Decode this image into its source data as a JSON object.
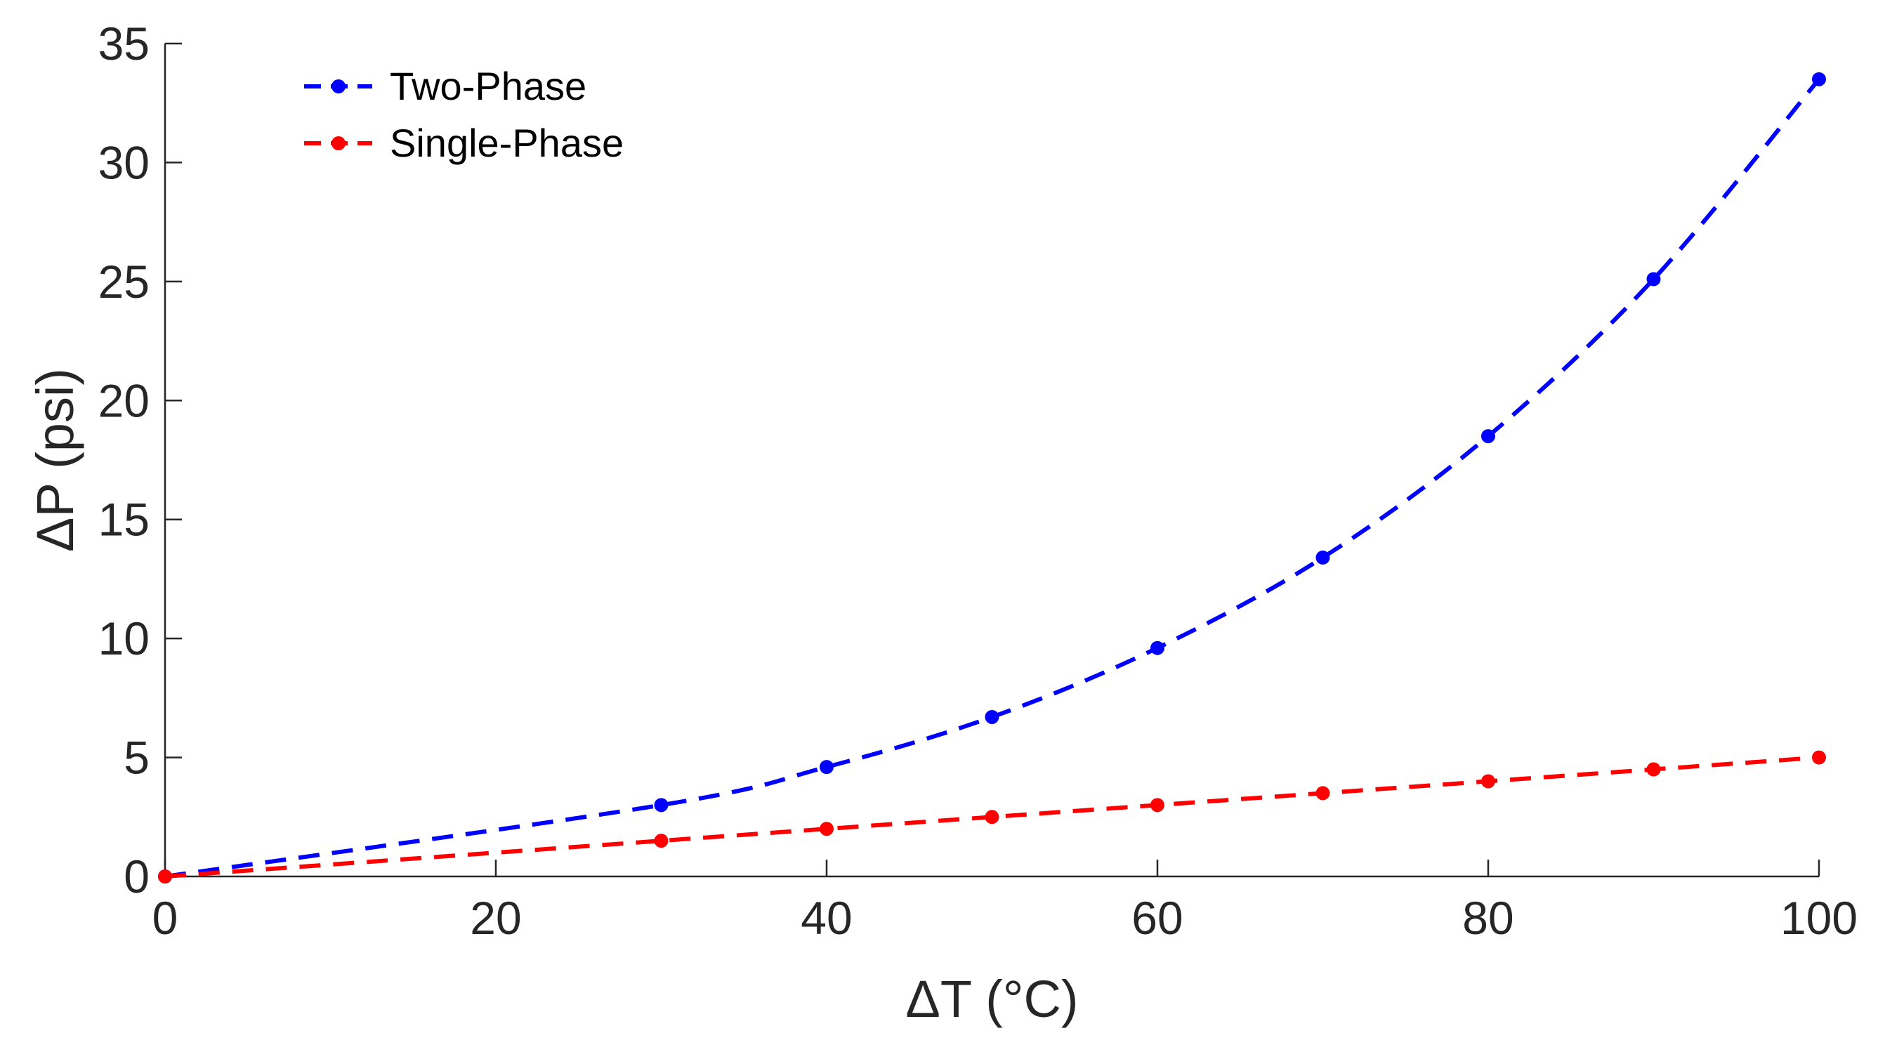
{
  "chart_data": {
    "type": "line",
    "title": "",
    "xlabel": "ΔT (°C)",
    "ylabel": "ΔP (psi)",
    "xlim": [
      0,
      100
    ],
    "ylim": [
      0,
      35
    ],
    "xticks": [
      "0",
      "20",
      "40",
      "60",
      "80",
      "100"
    ],
    "yticks": [
      "0",
      "5",
      "10",
      "15",
      "20",
      "25",
      "30",
      "35"
    ],
    "grid": false,
    "legend_position": "top-left",
    "series": [
      {
        "name": "Two-Phase",
        "color": "#0000ff",
        "line_style": "dashed",
        "marker": "dot",
        "x": [
          0,
          30,
          40,
          50,
          60,
          70,
          80,
          90,
          100
        ],
        "y": [
          0,
          3.0,
          4.6,
          6.7,
          9.6,
          13.4,
          18.5,
          25.1,
          33.5
        ]
      },
      {
        "name": "Single-Phase",
        "color": "#ff0000",
        "line_style": "dashed",
        "marker": "dot",
        "x": [
          0,
          30,
          40,
          50,
          60,
          70,
          80,
          90,
          100
        ],
        "y": [
          0,
          1.5,
          2.0,
          2.5,
          3.0,
          3.5,
          4.0,
          4.5,
          5.0
        ]
      }
    ]
  }
}
